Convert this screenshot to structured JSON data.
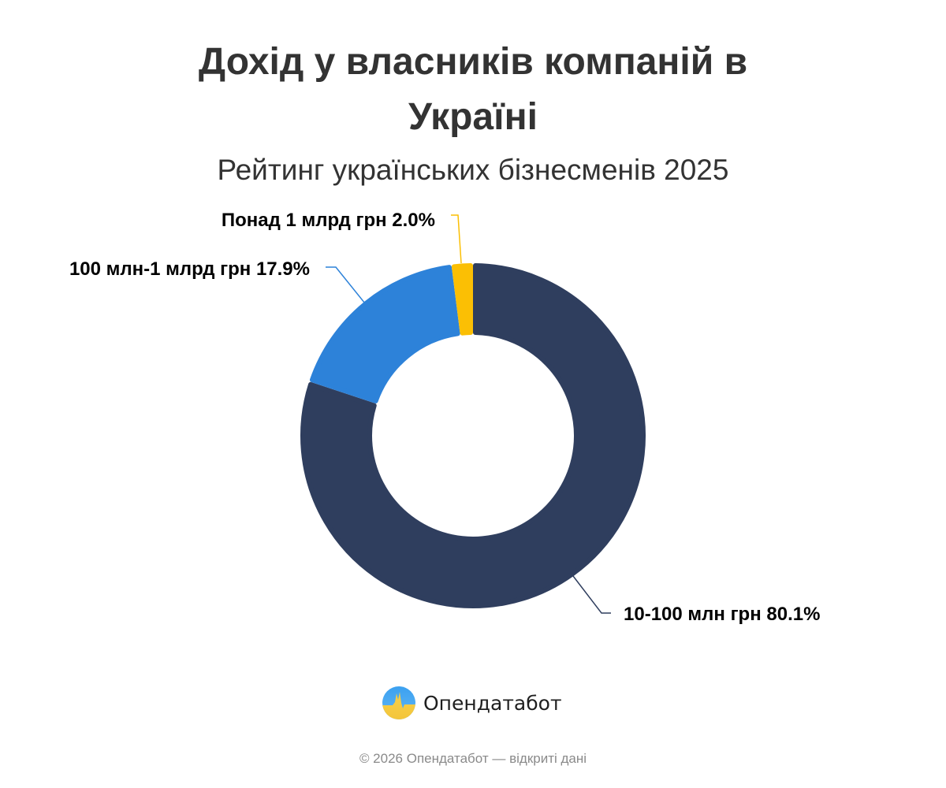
{
  "header": {
    "title_line1": "Дохід у власників компаній в",
    "title_line2": "Україні",
    "subtitle": "Рейтинг українських бізнесменів 2025"
  },
  "chart_data": {
    "type": "pie",
    "variant": "donut",
    "title": "Дохід у власників компаній в Україні",
    "subtitle": "Рейтинг українських бізнесменів 2025",
    "categories": [
      "10-100 млн грн",
      "100 млн-1 млрд грн",
      "Понад 1 млрд грн"
    ],
    "values": [
      80.1,
      17.9,
      2.0
    ],
    "unit": "%",
    "colors": [
      "#2f3e5e",
      "#2d82d9",
      "#fbbf04"
    ],
    "labels": [
      {
        "text": "10-100 млн грн 80.1%",
        "position": "bottom-right"
      },
      {
        "text": "100 млн-1 млрд грн 17.9%",
        "position": "top-left"
      },
      {
        "text": "Понад 1 млрд грн 2.0%",
        "position": "top"
      }
    ],
    "start_angle_deg": 0,
    "direction": "clockwise",
    "legend": "none (data labels with leader lines)"
  },
  "branding": {
    "name": "Опендатабот",
    "logo_icon": "opendatabot-logo-icon"
  },
  "footer": {
    "text": "© 2026 Опендатабот — відкриті дані"
  },
  "colors": {
    "text": "#333333",
    "label": "#000000",
    "footer": "#8a8a8a"
  }
}
